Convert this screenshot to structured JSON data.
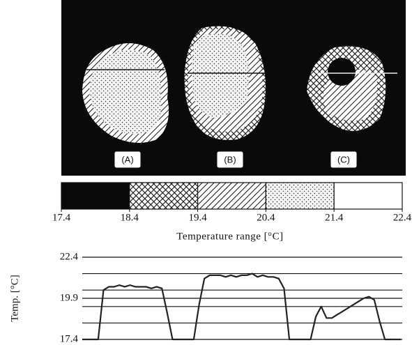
{
  "chart_data": {
    "type": "line",
    "panel_labels": [
      "(A)",
      "(B)",
      "(C)"
    ],
    "colorbar_ticks": [
      17.4,
      18.4,
      19.4,
      20.4,
      21.4,
      22.4
    ],
    "colorbar_patterns": [
      "solid",
      "crosshatch",
      "hatch",
      "dots",
      "blank"
    ],
    "colorbar_label": "Temperature range [°C]",
    "ylabel": "Temp. [°C]",
    "ylim": [
      17.4,
      22.4
    ],
    "yticks": [
      17.4,
      19.9,
      22.4
    ],
    "grid_levels": [
      18.4,
      19.4,
      20.4,
      21.4
    ],
    "color": "#222",
    "values": [
      17.4,
      17.4,
      17.4,
      17.4,
      20.4,
      20.6,
      20.6,
      20.7,
      20.6,
      20.7,
      20.6,
      20.6,
      20.6,
      20.5,
      20.6,
      20.5,
      19.0,
      17.4,
      17.4,
      17.4,
      17.4,
      17.4,
      19.5,
      21.1,
      21.3,
      21.3,
      21.3,
      21.2,
      21.3,
      21.2,
      21.3,
      21.3,
      21.4,
      21.2,
      21.3,
      21.2,
      21.2,
      21.1,
      20.5,
      17.4,
      17.4,
      17.4,
      17.4,
      17.4,
      18.8,
      19.4,
      18.7,
      18.7,
      18.9,
      19.1,
      19.3,
      19.5,
      19.7,
      19.9,
      20.0,
      19.8,
      18.5,
      17.4,
      17.4,
      17.4,
      17.4
    ]
  }
}
